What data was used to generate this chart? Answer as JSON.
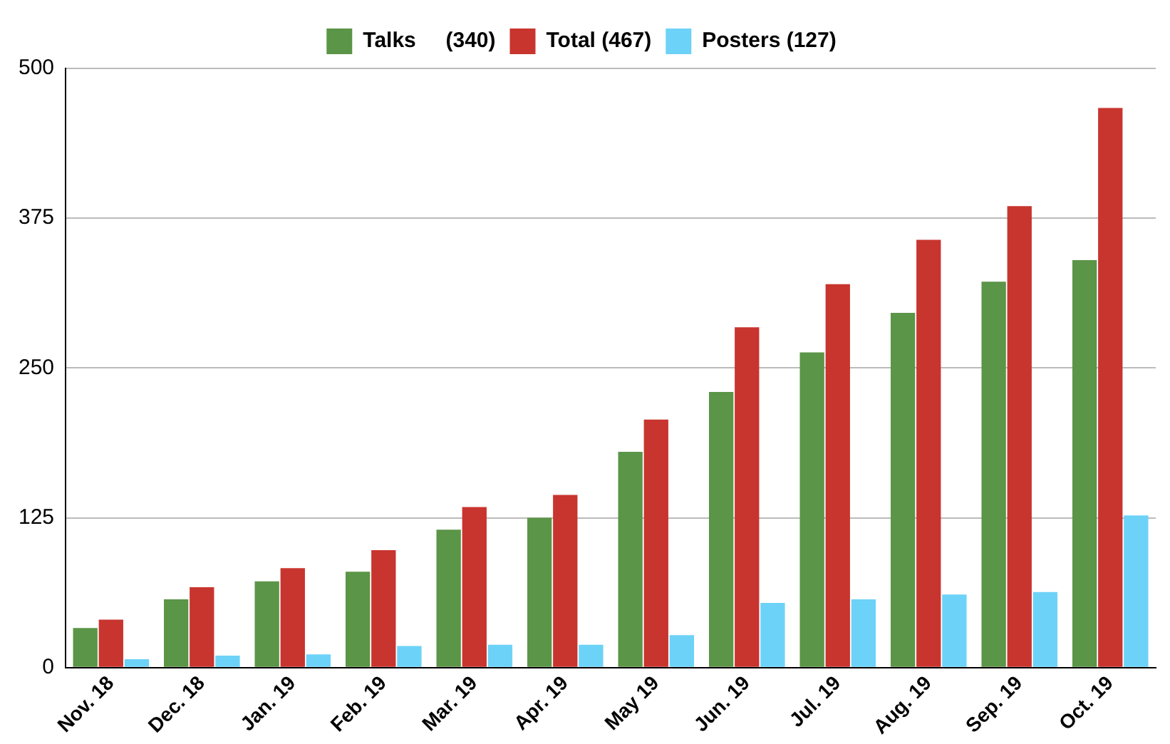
{
  "chart_data": {
    "type": "bar",
    "categories": [
      "Nov. 18",
      "Dec. 18",
      "Jan. 19",
      "Feb. 19",
      "Mar. 19",
      "Apr. 19",
      "May 19",
      "Jun. 19",
      "Jul. 19",
      "Aug. 19",
      "Sep. 19",
      "Oct. 19"
    ],
    "series": [
      {
        "name": "Talks     (340)",
        "color": "#5b9547",
        "values": [
          33,
          57,
          72,
          80,
          115,
          125,
          180,
          230,
          263,
          296,
          322,
          340
        ]
      },
      {
        "name": "Total (467)",
        "color": "#c8352e",
        "values": [
          40,
          67,
          83,
          98,
          134,
          144,
          207,
          284,
          320,
          357,
          385,
          467
        ]
      },
      {
        "name": "Posters (127)",
        "color": "#6dd2f8",
        "values": [
          7,
          10,
          11,
          18,
          19,
          19,
          27,
          54,
          57,
          61,
          63,
          127
        ]
      }
    ],
    "ylim": [
      0,
      500
    ],
    "yticks": [
      0,
      125,
      250,
      375,
      500
    ],
    "grid": "y",
    "legend": "top"
  }
}
